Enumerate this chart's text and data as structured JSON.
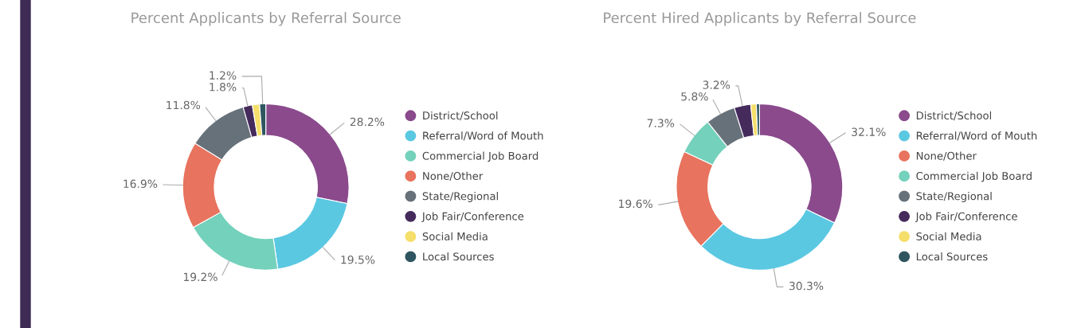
{
  "chart_data": [
    {
      "type": "donut",
      "title": "Percent Applicants by Referral Source",
      "legend": "right",
      "categories": [
        "District/School",
        "Referral/Word of Mouth",
        "Commercial Job Board",
        "None/Other",
        "State/Regional",
        "Job Fair/Conference",
        "Social Media",
        "Local Sources"
      ],
      "values": [
        28.2,
        19.5,
        19.2,
        16.9,
        11.8,
        1.8,
        1.4,
        1.2
      ],
      "value_labels": [
        "28.2%",
        "19.5%",
        "19.2%",
        "16.9%",
        "11.8%",
        "1.8%",
        null,
        "1.2%"
      ],
      "colors": [
        "#8a4a8c",
        "#5bc8e2",
        "#74d1bb",
        "#e8735e",
        "#67717a",
        "#452a5c",
        "#f5de6a",
        "#2e5560"
      ]
    },
    {
      "type": "donut",
      "title": "Percent Hired Applicants by Referral Source",
      "legend": "right",
      "categories": [
        "District/School",
        "Referral/Word of Mouth",
        "None/Other",
        "Commercial Job Board",
        "State/Regional",
        "Job Fair/Conference",
        "Social Media",
        "Local Sources"
      ],
      "values": [
        32.1,
        30.3,
        19.6,
        7.3,
        5.8,
        3.2,
        1.1,
        0.6
      ],
      "value_labels": [
        "32.1%",
        "30.3%",
        "19.6%",
        "7.3%",
        "5.8%",
        "3.2%",
        null,
        null
      ],
      "colors": [
        "#8a4a8c",
        "#5bc8e2",
        "#e8735e",
        "#74d1bb",
        "#67717a",
        "#452a5c",
        "#f5de6a",
        "#2e5560"
      ]
    }
  ]
}
